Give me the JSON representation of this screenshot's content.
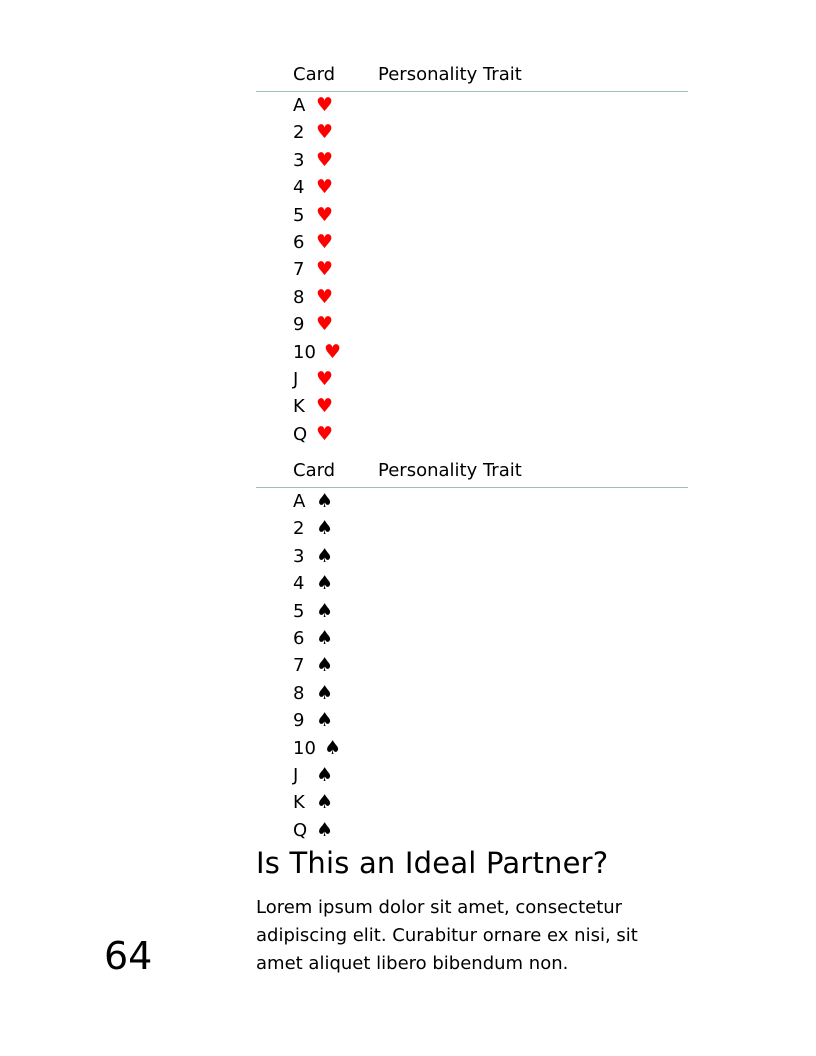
{
  "hearts_table": {
    "header_card": "Card",
    "header_trait": "Personality Trait",
    "suit_symbol": "♥",
    "suit_color": "#ff0000",
    "rows": [
      "A",
      "2",
      "3",
      "4",
      "5",
      "6",
      "7",
      "8",
      "9",
      "10",
      "J",
      "K",
      "Q"
    ]
  },
  "spades_table": {
    "header_card": "Card",
    "header_trait": "Personality Trait",
    "suit_symbol": "♠",
    "suit_color": "#000000",
    "rows": [
      "A",
      "2",
      "3",
      "4",
      "5",
      "6",
      "7",
      "8",
      "9",
      "10",
      "J",
      "K",
      "Q"
    ]
  },
  "section": {
    "heading": "Is This an Ideal Partner?",
    "paragraph": "Lorem ipsum dolor sit amet, consectetur adipiscing elit. Curabitur ornare ex nisi, sit amet aliquet libero bibendum non."
  },
  "page_number": "64"
}
